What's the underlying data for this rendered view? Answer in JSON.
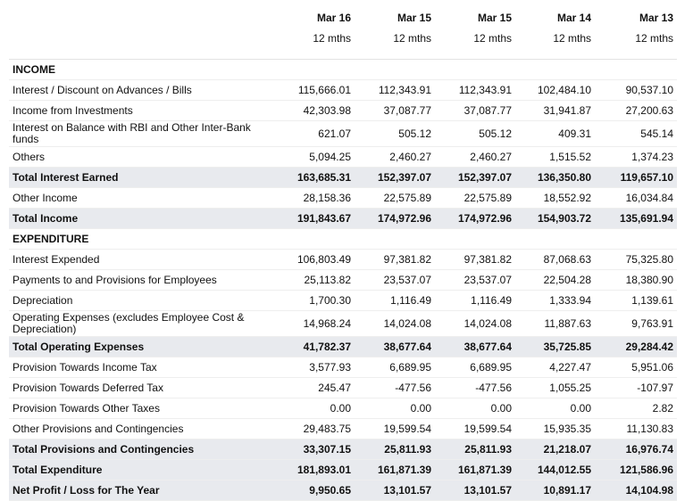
{
  "years": [
    "Mar 16",
    "Mar 15",
    "Mar 15",
    "Mar 14",
    "Mar 13"
  ],
  "durations": [
    "12 mths",
    "12 mths",
    "12 mths",
    "12 mths",
    "12 mths"
  ],
  "rows": [
    {
      "label": "INCOME",
      "type": "section",
      "values": [
        "",
        "",
        "",
        "",
        ""
      ]
    },
    {
      "label": "Interest / Discount on Advances / Bills",
      "type": "normal",
      "values": [
        "115,666.01",
        "112,343.91",
        "112,343.91",
        "102,484.10",
        "90,537.10"
      ]
    },
    {
      "label": "Income from Investments",
      "type": "normal",
      "values": [
        "42,303.98",
        "37,087.77",
        "37,087.77",
        "31,941.87",
        "27,200.63"
      ]
    },
    {
      "label": "Interest on Balance with RBI and Other Inter-Bank funds",
      "type": "tall",
      "values": [
        "621.07",
        "505.12",
        "505.12",
        "409.31",
        "545.14"
      ]
    },
    {
      "label": "Others",
      "type": "normal",
      "values": [
        "5,094.25",
        "2,460.27",
        "2,460.27",
        "1,515.52",
        "1,374.23"
      ]
    },
    {
      "label": "Total Interest Earned",
      "type": "total",
      "values": [
        "163,685.31",
        "152,397.07",
        "152,397.07",
        "136,350.80",
        "119,657.10"
      ]
    },
    {
      "label": "Other Income",
      "type": "normal",
      "values": [
        "28,158.36",
        "22,575.89",
        "22,575.89",
        "18,552.92",
        "16,034.84"
      ]
    },
    {
      "label": "Total Income",
      "type": "total",
      "values": [
        "191,843.67",
        "174,972.96",
        "174,972.96",
        "154,903.72",
        "135,691.94"
      ]
    },
    {
      "label": "EXPENDITURE",
      "type": "section",
      "values": [
        "",
        "",
        "",
        "",
        ""
      ]
    },
    {
      "label": "Interest Expended",
      "type": "normal",
      "values": [
        "106,803.49",
        "97,381.82",
        "97,381.82",
        "87,068.63",
        "75,325.80"
      ]
    },
    {
      "label": "Payments to and Provisions for Employees",
      "type": "normal",
      "values": [
        "25,113.82",
        "23,537.07",
        "23,537.07",
        "22,504.28",
        "18,380.90"
      ]
    },
    {
      "label": "Depreciation",
      "type": "normal",
      "values": [
        "1,700.30",
        "1,116.49",
        "1,116.49",
        "1,333.94",
        "1,139.61"
      ]
    },
    {
      "label": "Operating Expenses (excludes Employee Cost & Depreciation)",
      "type": "tall",
      "values": [
        "14,968.24",
        "14,024.08",
        "14,024.08",
        "11,887.63",
        "9,763.91"
      ]
    },
    {
      "label": "Total Operating Expenses",
      "type": "total",
      "values": [
        "41,782.37",
        "38,677.64",
        "38,677.64",
        "35,725.85",
        "29,284.42"
      ]
    },
    {
      "label": "Provision Towards Income Tax",
      "type": "normal",
      "values": [
        "3,577.93",
        "6,689.95",
        "6,689.95",
        "4,227.47",
        "5,951.06"
      ]
    },
    {
      "label": "Provision Towards Deferred Tax",
      "type": "normal",
      "values": [
        "245.47",
        "-477.56",
        "-477.56",
        "1,055.25",
        "-107.97"
      ]
    },
    {
      "label": "Provision Towards Other Taxes",
      "type": "normal",
      "values": [
        "0.00",
        "0.00",
        "0.00",
        "0.00",
        "2.82"
      ]
    },
    {
      "label": "Other Provisions and Contingencies",
      "type": "normal",
      "values": [
        "29,483.75",
        "19,599.54",
        "19,599.54",
        "15,935.35",
        "11,130.83"
      ]
    },
    {
      "label": "Total Provisions and Contingencies",
      "type": "total",
      "values": [
        "33,307.15",
        "25,811.93",
        "25,811.93",
        "21,218.07",
        "16,976.74"
      ]
    },
    {
      "label": "Total Expenditure",
      "type": "total",
      "values": [
        "181,893.01",
        "161,871.39",
        "161,871.39",
        "144,012.55",
        "121,586.96"
      ]
    },
    {
      "label": "Net Profit / Loss for The Year",
      "type": "total",
      "values": [
        "9,950.65",
        "13,101.57",
        "13,101.57",
        "10,891.17",
        "14,104.98"
      ]
    }
  ]
}
